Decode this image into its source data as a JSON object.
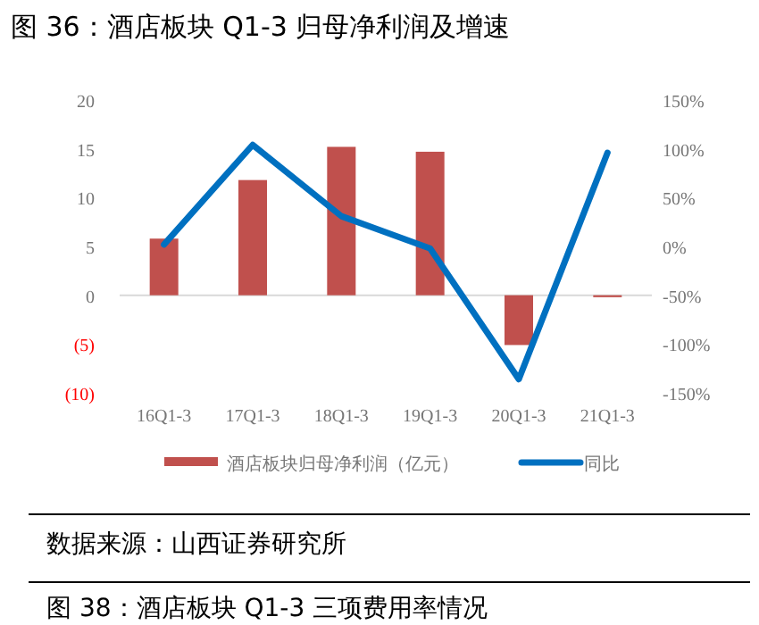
{
  "chart_data": {
    "type": "bar",
    "title": "图 36：酒店板块 Q1-3 归母净利润及增速",
    "categories": [
      "16Q1-3",
      "17Q1-3",
      "18Q1-3",
      "19Q1-3",
      "20Q1-3",
      "21Q1-3"
    ],
    "series": [
      {
        "name": "酒店板块归母净利润（亿元）",
        "color": "#c0504d",
        "values": [
          5.8,
          11.8,
          15.2,
          14.7,
          -5.1,
          -0.2
        ]
      },
      {
        "name": "同比",
        "type": "line",
        "axis": "y2",
        "color": "#0070c0",
        "values": [
          2,
          104,
          31,
          -2,
          -136,
          96
        ]
      }
    ],
    "ylim": [
      -10,
      20
    ],
    "yticks": [
      {
        "value": -10,
        "label": "(10)"
      },
      {
        "value": -5,
        "label": "(5)"
      },
      0,
      5,
      10,
      15,
      20
    ],
    "y2lim": [
      -150,
      150
    ],
    "y2ticks": [
      {
        "value": -150,
        "label": "-150%"
      },
      {
        "value": -100,
        "label": "-100%"
      },
      {
        "value": -50,
        "label": "-50%"
      },
      {
        "value": 0,
        "label": "0%"
      },
      {
        "value": 50,
        "label": "50%"
      },
      {
        "value": 100,
        "label": "100%"
      },
      {
        "value": 150,
        "label": "150%"
      }
    ],
    "legend": "bottom",
    "annotations": [
      "数据来源：山西证券研究所",
      "图 38：酒店板块 Q1-3 三项费用率情况"
    ]
  }
}
